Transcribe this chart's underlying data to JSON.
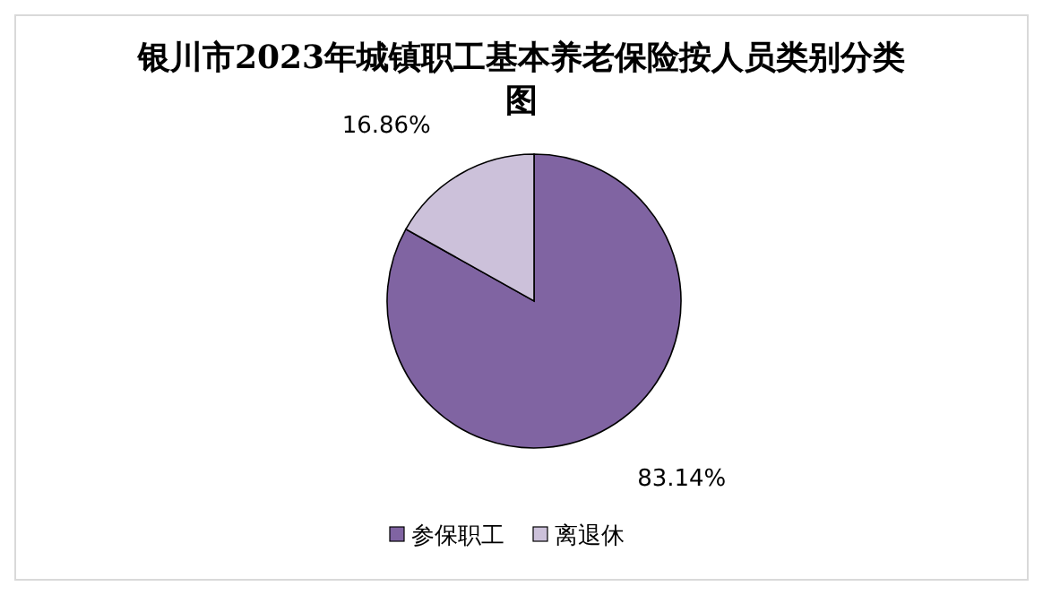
{
  "chart_data": {
    "type": "pie",
    "title": "银川市2023年城镇职工基本养老保险按人员类别分类图",
    "categories": [
      "参保职工",
      "离退休"
    ],
    "values": [
      83.14,
      16.86
    ],
    "colors": [
      "#8064a2",
      "#ccc1da"
    ],
    "value_labels": [
      "83.14%",
      "16.86%"
    ],
    "legend": "bottom"
  }
}
